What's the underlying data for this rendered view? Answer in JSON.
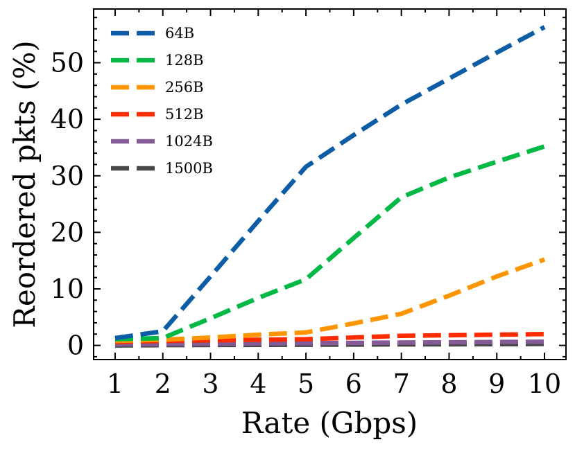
{
  "chart_data": {
    "type": "line",
    "title": "",
    "xlabel": "Rate (Gbps)",
    "ylabel": "Reordered pkts (%)",
    "x": [
      1,
      2,
      3,
      4,
      5,
      6,
      7,
      8,
      9,
      10
    ],
    "xlim": [
      0.55,
      10.45
    ],
    "ylim": [
      -2.5,
      59.5
    ],
    "xticks": [
      1,
      2,
      3,
      4,
      5,
      6,
      7,
      8,
      9,
      10
    ],
    "xtick_labels": [
      "1",
      "2",
      "3",
      "4",
      "5",
      "6",
      "7",
      "8",
      "9",
      "10"
    ],
    "yticks": [
      0,
      10,
      20,
      30,
      40,
      50
    ],
    "ytick_labels": [
      "0",
      "10",
      "20",
      "30",
      "40",
      "50"
    ],
    "grid": false,
    "legend_position": "top-left",
    "series": [
      {
        "name": "64B",
        "color": "#0C5DA5",
        "values": [
          1.3,
          2.5,
          12.2,
          22.0,
          31.6,
          37.2,
          42.6,
          47.2,
          51.8,
          56.3
        ]
      },
      {
        "name": "128B",
        "color": "#00B945",
        "values": [
          1.1,
          1.3,
          4.8,
          8.4,
          11.7,
          19.0,
          26.2,
          29.7,
          32.5,
          35.2
        ]
      },
      {
        "name": "256B",
        "color": "#FF9500",
        "values": [
          0.8,
          1.0,
          1.4,
          1.9,
          2.3,
          3.9,
          5.6,
          8.8,
          12.2,
          15.2
        ]
      },
      {
        "name": "512B",
        "color": "#FF2C00",
        "values": [
          0.6,
          0.8,
          0.9,
          1.0,
          1.1,
          1.4,
          1.7,
          1.8,
          1.9,
          2.0
        ]
      },
      {
        "name": "1024B",
        "color": "#845B97",
        "values": [
          0.2,
          0.25,
          0.3,
          0.35,
          0.4,
          0.45,
          0.5,
          0.55,
          0.6,
          0.65
        ]
      },
      {
        "name": "1500B",
        "color": "#474747",
        "values": [
          0.0,
          0.05,
          0.08,
          0.1,
          0.12,
          0.15,
          0.18,
          0.2,
          0.22,
          0.25
        ]
      }
    ]
  }
}
